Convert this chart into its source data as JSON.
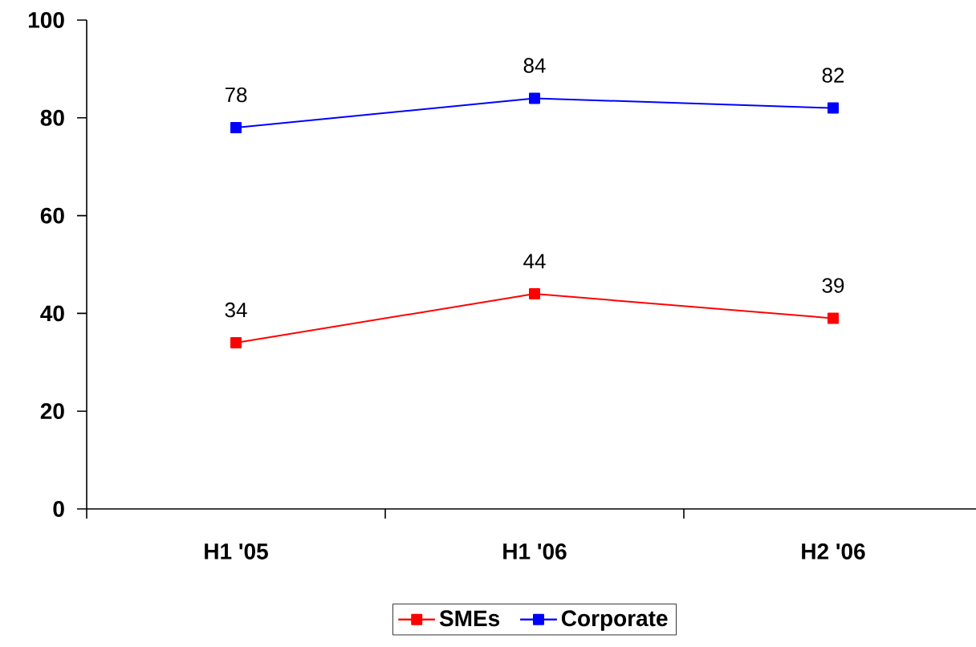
{
  "chart_data": {
    "type": "line",
    "categories": [
      "H1 '05",
      "H1 '06",
      "H2 '06"
    ],
    "series": [
      {
        "name": "SMEs",
        "color": "#ff0000",
        "values": [
          34,
          44,
          39
        ]
      },
      {
        "name": "Corporate",
        "color": "#0000ff",
        "values": [
          78,
          84,
          82
        ]
      }
    ],
    "ylim": [
      0,
      100
    ],
    "yticks": [
      0,
      20,
      40,
      60,
      80,
      100
    ],
    "data_labels": true,
    "legend": "bottom",
    "marker": "square",
    "grid": false
  }
}
